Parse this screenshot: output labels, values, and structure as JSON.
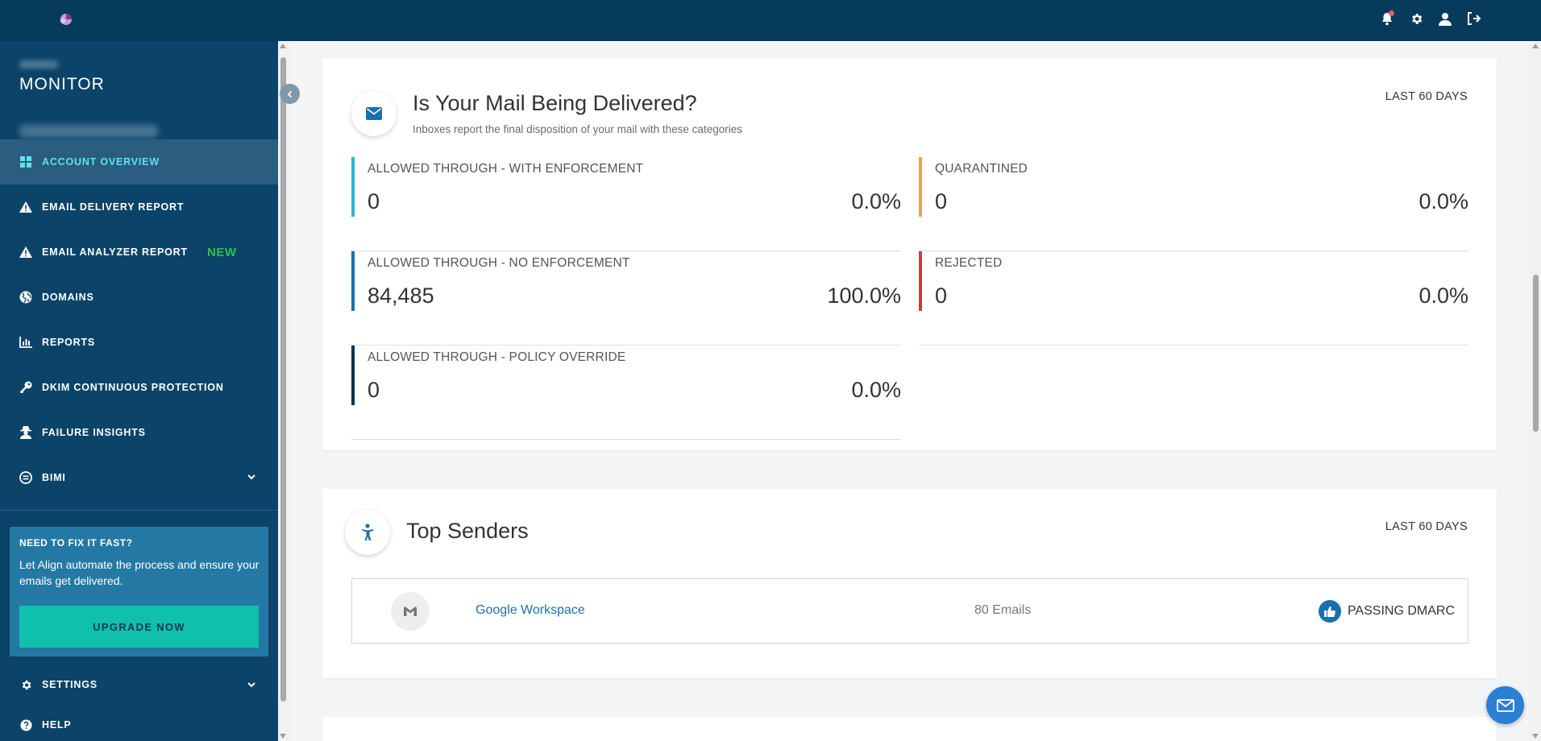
{
  "app": {
    "brand_name": "MONITOR"
  },
  "topbar": {
    "icons": [
      "bell-icon",
      "gear-icon",
      "user-icon",
      "logout-icon"
    ]
  },
  "sidebar": {
    "items": [
      {
        "label": "ACCOUNT OVERVIEW",
        "icon": "grid-icon",
        "active": true
      },
      {
        "label": "EMAIL DELIVERY REPORT",
        "icon": "warning-icon"
      },
      {
        "label": "EMAIL ANALYZER REPORT",
        "icon": "warning-icon",
        "badge": "NEW"
      },
      {
        "label": "DOMAINS",
        "icon": "globe-icon"
      },
      {
        "label": "REPORTS",
        "icon": "bar-chart-icon"
      },
      {
        "label": "DKIM CONTINUOUS PROTECTION",
        "icon": "key-icon"
      },
      {
        "label": "FAILURE INSIGHTS",
        "icon": "user-secret-icon"
      },
      {
        "label": "BIMI",
        "icon": "bimi-icon"
      }
    ],
    "promo": {
      "title": "NEED TO FIX IT FAST?",
      "text": "Let Align automate the process and ensure your emails get delivered.",
      "button": "UPGRADE NOW"
    },
    "bottom_items": [
      {
        "label": "SETTINGS",
        "icon": "gear-icon"
      },
      {
        "label": "HELP",
        "icon": "help-icon"
      }
    ]
  },
  "delivery": {
    "title": "Is Your Mail Being Delivered?",
    "subtitle": "Inboxes report the final disposition of your mail with these categories",
    "range": "LAST 60 DAYS",
    "stats": [
      {
        "label": "ALLOWED THROUGH - WITH ENFORCEMENT",
        "count": "0",
        "percent": "0.0%",
        "color": "#29b6d5"
      },
      {
        "label": "QUARANTINED",
        "count": "0",
        "percent": "0.0%",
        "color": "#f0a23a"
      },
      {
        "label": "ALLOWED THROUGH - NO ENFORCEMENT",
        "count": "84,485",
        "percent": "100.0%",
        "color": "#1b6fa8"
      },
      {
        "label": "REJECTED",
        "count": "0",
        "percent": "0.0%",
        "color": "#d9333f"
      },
      {
        "label": "ALLOWED THROUGH - POLICY OVERRIDE",
        "count": "0",
        "percent": "0.0%",
        "color": "#0b3350"
      }
    ]
  },
  "senders": {
    "title": "Top Senders",
    "range": "LAST 60 DAYS",
    "rows": [
      {
        "name": "Google Workspace",
        "count": "80 Emails",
        "status": "PASSING DMARC"
      }
    ]
  }
}
